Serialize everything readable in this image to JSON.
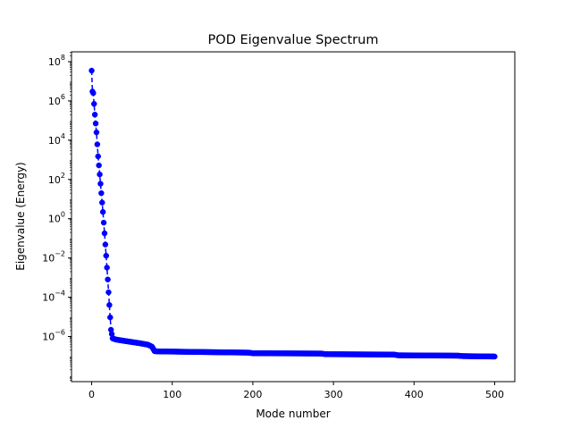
{
  "chart_data": {
    "type": "scatter",
    "title": "POD Eigenvalue Spectrum",
    "xlabel": "Mode number",
    "ylabel": "Eigenvalue (Energy)",
    "xlim": [
      -25,
      525
    ],
    "ylim_log10": [
      -8.3,
      8.5
    ],
    "yscale": "log",
    "grid": false,
    "x_ticks": [
      0,
      100,
      200,
      300,
      400,
      500
    ],
    "y_tick_exponents": [
      8,
      6,
      4,
      2,
      0,
      -2,
      -4,
      -6
    ],
    "y_tick_base": "10",
    "series": [
      {
        "color": "#0000ff",
        "marker": "circle",
        "linestyle": "dashed",
        "knots": [
          [
            0,
            35000000.0
          ],
          [
            1,
            3000000.0
          ],
          [
            2,
            2500000.0
          ],
          [
            4,
            200000.0
          ],
          [
            6,
            25000.0
          ],
          [
            8,
            1500.0
          ],
          [
            10,
            180.0
          ],
          [
            12,
            20.0
          ],
          [
            14,
            2.2
          ],
          [
            16,
            0.18
          ],
          [
            18,
            0.013
          ],
          [
            20,
            0.0008
          ],
          [
            22,
            4e-05
          ],
          [
            24,
            2.2e-06
          ],
          [
            26,
            8e-07
          ],
          [
            30,
            7e-07
          ],
          [
            40,
            6e-07
          ],
          [
            50,
            5.2e-07
          ],
          [
            60,
            4.5e-07
          ],
          [
            70,
            3.8e-07
          ],
          [
            75,
            3e-07
          ],
          [
            78,
            1.8e-07
          ],
          [
            80,
            1.75e-07
          ],
          [
            120,
            1.65e-07
          ],
          [
            195,
            1.5e-07
          ],
          [
            200,
            1.4e-07
          ],
          [
            285,
            1.35e-07
          ],
          [
            290,
            1.25e-07
          ],
          [
            375,
            1.2e-07
          ],
          [
            380,
            1.1e-07
          ],
          [
            455,
            1.05e-07
          ],
          [
            460,
            1e-07
          ],
          [
            500,
            9.5e-08
          ]
        ]
      }
    ]
  }
}
